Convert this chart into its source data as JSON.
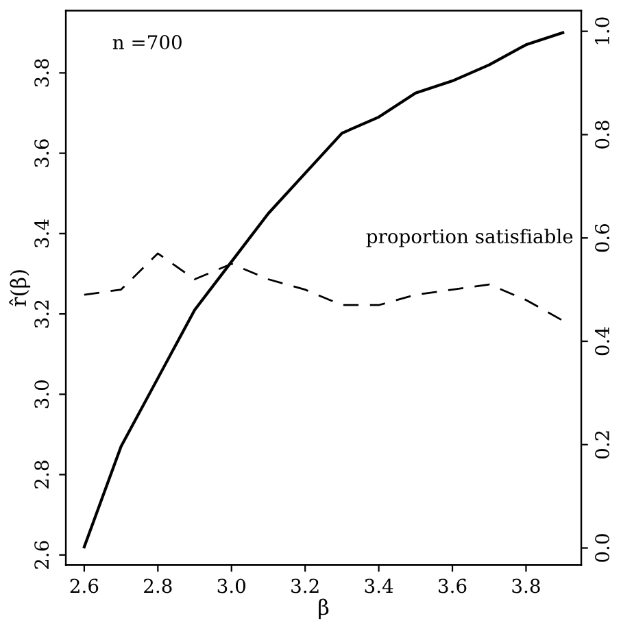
{
  "chart_data": {
    "type": "line",
    "x": [
      2.6,
      2.7,
      2.8,
      2.9,
      3.0,
      3.1,
      3.2,
      3.3,
      3.4,
      3.5,
      3.6,
      3.7,
      3.8,
      3.9
    ],
    "series": [
      {
        "color": "#000000",
        "line_style": "solid",
        "values": [
          2.62,
          2.87,
          3.04,
          3.21,
          3.33,
          3.45,
          3.55,
          3.65,
          3.69,
          3.75,
          3.78,
          3.82,
          3.87,
          3.9
        ]
      },
      {
        "color": "#000000",
        "line_style": "dashed",
        "axis": "y2",
        "values": [
          0.49,
          0.5,
          0.57,
          0.52,
          0.55,
          0.52,
          0.5,
          0.47,
          0.47,
          0.49,
          0.5,
          0.51,
          0.48,
          0.44
        ]
      }
    ],
    "xlabel": "β",
    "ylabel": "r̂(β)",
    "xlim": [
      2.55,
      3.95
    ],
    "xticks": [
      2.6,
      2.8,
      {
        "value": 3,
        "label": "3.0"
      },
      3.2,
      3.4,
      3.6,
      3.8
    ],
    "ylim": [
      2.575,
      3.955
    ],
    "yticks": [
      2.6,
      2.8,
      {
        "value": 3,
        "label": "3.0"
      },
      3.2,
      3.4,
      3.6,
      3.8
    ],
    "y2lim": [
      -0.033,
      1.04
    ],
    "y2ticks": [
      {
        "value": 0,
        "label": "0.0"
      },
      0.2,
      0.4,
      0.6,
      0.8,
      {
        "value": 1,
        "label": "1.0"
      }
    ],
    "annotations": [
      "n =700",
      "proportion satisfiable"
    ],
    "grid": false,
    "legend": false,
    "marker": "none"
  }
}
